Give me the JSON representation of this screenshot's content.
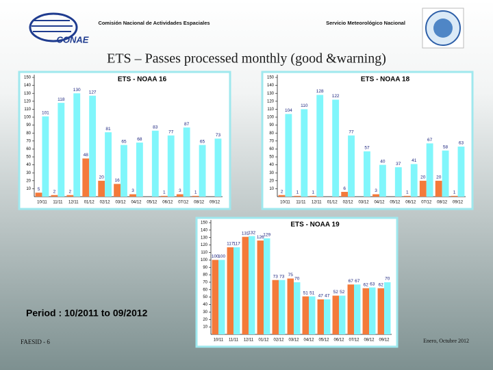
{
  "header": {
    "left": "Comisión Nacional de Actividades Espaciales",
    "right": "Servicio Meteorológico Nacional",
    "logo": "CONAE",
    "title": "ETS – Passes processed monthly (good &warning)"
  },
  "period": "Period : 10/2011 to 09/2012",
  "footer": {
    "left": "FAESID - 6",
    "right": "Enero, Octubre 2012"
  },
  "chart_data": [
    {
      "type": "bar",
      "title": "ETS - NOAA 16",
      "categories": [
        "10/11",
        "11/11",
        "12/11",
        "01/12",
        "02/12",
        "03/12",
        "04/12",
        "05/12",
        "06/12",
        "07/12",
        "08/12",
        "09/12"
      ],
      "series": [
        {
          "color": "#f47a3a",
          "values": [
            5,
            2,
            2,
            48,
            20,
            16,
            3,
            null,
            1,
            3,
            1,
            null
          ]
        },
        {
          "color": "#80f6fb",
          "values": [
            101,
            118,
            130,
            127,
            81,
            65,
            68,
            83,
            77,
            87,
            65,
            73
          ]
        }
      ],
      "ylim": [
        0,
        150
      ],
      "yticks": [
        10,
        20,
        30,
        40,
        50,
        60,
        70,
        80,
        90,
        100,
        110,
        120,
        130,
        140,
        150
      ]
    },
    {
      "type": "bar",
      "title": "ETS - NOAA 18",
      "categories": [
        "10/11",
        "11/11",
        "12/11",
        "01/12",
        "02/12",
        "03/12",
        "04/12",
        "05/12",
        "06/12",
        "07/12",
        "08/12",
        "09/12"
      ],
      "series": [
        {
          "color": "#f47a3a",
          "values": [
            2,
            1,
            1,
            null,
            6,
            null,
            3,
            null,
            1,
            20,
            20,
            1
          ]
        },
        {
          "color": "#80f6fb",
          "values": [
            104,
            110,
            128,
            122,
            77,
            57,
            40,
            37,
            41,
            67,
            58,
            63
          ]
        }
      ],
      "ylim": [
        0,
        150
      ],
      "yticks": [
        10,
        20,
        30,
        40,
        50,
        60,
        70,
        80,
        90,
        100,
        110,
        120,
        130,
        140,
        150
      ]
    },
    {
      "type": "bar",
      "title": "ETS - NOAA 19",
      "categories": [
        "10/11",
        "11/11",
        "12/11",
        "01/12",
        "02/12",
        "03/12",
        "04/12",
        "05/12",
        "06/12",
        "07/12",
        "08/12",
        "09/12"
      ],
      "series": [
        {
          "color": "#f47a3a",
          "values": [
            100,
            117,
            131,
            126,
            73,
            75,
            51,
            47,
            52,
            67,
            62,
            62
          ]
        },
        {
          "color": "#80f6fb",
          "values": [
            100,
            117,
            132,
            129,
            73,
            70,
            51,
            47,
            52,
            67,
            63,
            70
          ]
        }
      ],
      "ylim": [
        0,
        150
      ],
      "yticks": [
        10,
        20,
        30,
        40,
        50,
        60,
        70,
        80,
        90,
        100,
        110,
        120,
        130,
        140,
        150
      ]
    }
  ]
}
